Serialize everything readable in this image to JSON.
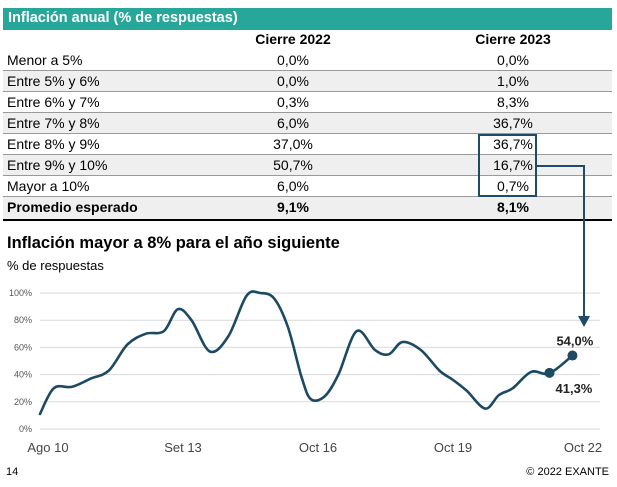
{
  "table": {
    "title": "Inflación anual (% de respuestas)",
    "headers": [
      "",
      "Cierre 2022",
      "Cierre 2023"
    ],
    "rows": [
      {
        "label": "Menor a 5%",
        "v2022": "0,0%",
        "v2023": "0,0%"
      },
      {
        "label": "Entre 5% y 6%",
        "v2022": "0,0%",
        "v2023": "1,0%"
      },
      {
        "label": "Entre 6% y 7%",
        "v2022": "0,3%",
        "v2023": "8,3%"
      },
      {
        "label": "Entre 7% y 8%",
        "v2022": "6,0%",
        "v2023": "36,7%"
      },
      {
        "label": "Entre 8% y 9%",
        "v2022": "37,0%",
        "v2023": "36,7%"
      },
      {
        "label": "Entre 9% y 10%",
        "v2022": "50,7%",
        "v2023": "16,7%"
      },
      {
        "label": "Mayor a 10%",
        "v2022": "6,0%",
        "v2023": "0,7%"
      }
    ],
    "total": {
      "label": "Promedio esperado",
      "v2022": "9,1%",
      "v2023": "8,1%"
    },
    "highlighted_rows": [
      "Entre 8% y 9%",
      "Entre 9% y 10%",
      "Mayor a 10%"
    ],
    "highlight_color": "#1e4b65",
    "header_color": "#27a79a"
  },
  "chart_data": {
    "type": "line",
    "title": "Inflación mayor a 8% para el año siguiente",
    "ylabel": "% de respuestas",
    "x_tick_labels": [
      "Ago 10",
      "Set 13",
      "Oct 16",
      "Oct 19",
      "Oct 22"
    ],
    "x_range": [
      2010.6,
      2022.8
    ],
    "ylim": [
      0,
      100
    ],
    "y_ticks": [
      0,
      20,
      40,
      60,
      80,
      100
    ],
    "y_tick_labels": [
      "0%",
      "20%",
      "40%",
      "60%",
      "80%",
      "100%"
    ],
    "grid": "horizontal",
    "line_color": "#1c4a63",
    "series": [
      {
        "x": [
          2010.6,
          2010.9,
          2011.3,
          2011.7,
          2012.1,
          2012.5,
          2012.9,
          2013.3,
          2013.6,
          2013.9,
          2014.3,
          2014.7,
          2015.1,
          2015.4,
          2015.7,
          2016.0,
          2016.3,
          2016.5,
          2016.8,
          2017.1,
          2017.5,
          2017.9,
          2018.2,
          2018.5,
          2018.9,
          2019.3,
          2019.6,
          2019.9,
          2020.3,
          2020.6,
          2020.9,
          2021.3,
          2021.7,
          2022.2
        ],
        "values": [
          11,
          30,
          31,
          37,
          43,
          62,
          70,
          72,
          88,
          80,
          57,
          68,
          98,
          100,
          96,
          75,
          38,
          22,
          24,
          40,
          72,
          58,
          55,
          64,
          58,
          43,
          36,
          28,
          15,
          25,
          30,
          42,
          41,
          54
        ]
      }
    ],
    "annotations": [
      {
        "x": 2021.7,
        "y": 41.3,
        "label": "41,3%"
      },
      {
        "x": 2022.2,
        "y": 54.0,
        "label": "54,0%"
      }
    ]
  },
  "footer": {
    "page": "14",
    "copyright": "© 2022 EXANTE"
  }
}
